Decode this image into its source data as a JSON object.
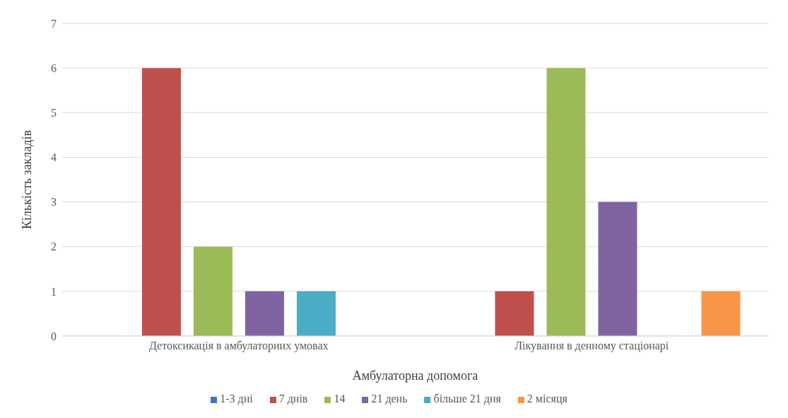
{
  "chart_data": {
    "type": "bar",
    "xlabel": "Амбулаторна допомога",
    "ylabel": "Кількість закладів",
    "categories": [
      "Детоксикація  в амбулаториих умовах",
      "Лікування в денному стаціонарі"
    ],
    "series": [
      {
        "name": "1-3 дні",
        "color": "#4472c4",
        "values": [
          0,
          0
        ]
      },
      {
        "name": "7 днів",
        "color": "#c0504d",
        "values": [
          6,
          1
        ]
      },
      {
        "name": "14",
        "color": "#9bbb59",
        "values": [
          2,
          6
        ]
      },
      {
        "name": "21 день",
        "color": "#8064a2",
        "values": [
          1,
          3
        ]
      },
      {
        "name": "більше 21 дня",
        "color": "#4bacc6",
        "values": [
          1,
          0
        ]
      },
      {
        "name": "2 місяця",
        "color": "#f79646",
        "values": [
          0,
          1
        ]
      }
    ],
    "ylim": [
      0,
      7
    ],
    "yticks": [
      0,
      1,
      2,
      3,
      4,
      5,
      6,
      7
    ],
    "grid": "y",
    "legend": "bottom"
  }
}
